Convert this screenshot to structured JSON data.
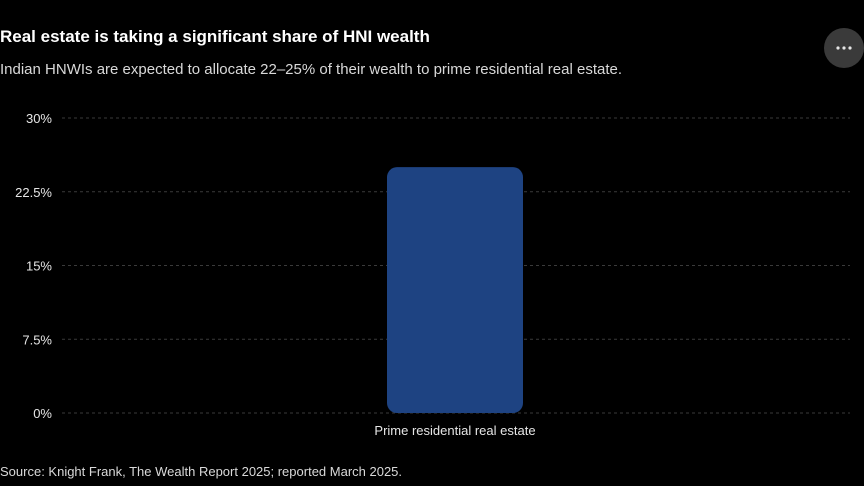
{
  "header": {
    "title": "Real estate is taking a significant share of HNI wealth",
    "subtitle": "Indian HNWIs are expected to allocate 22–25% of their wealth to prime residential real estate."
  },
  "menu": {
    "icon": "more-horizontal-icon"
  },
  "footer": {
    "source": "Source: Knight Frank, The Wealth Report 2025; reported March 2025."
  },
  "colors": {
    "background": "#000000",
    "bar": "#1e4382",
    "grid": "#3a3a3a",
    "tick_text": "#e6e6e6"
  },
  "chart_data": {
    "type": "bar",
    "categories": [
      "Prime residential real estate"
    ],
    "values": [
      25
    ],
    "ylim": [
      0,
      30
    ],
    "yticks": [
      0,
      7.5,
      15,
      22.5,
      30
    ],
    "ytick_labels": [
      "0%",
      "7.5%",
      "15%",
      "22.5%",
      "30%"
    ],
    "grid": true,
    "legend": "none"
  }
}
